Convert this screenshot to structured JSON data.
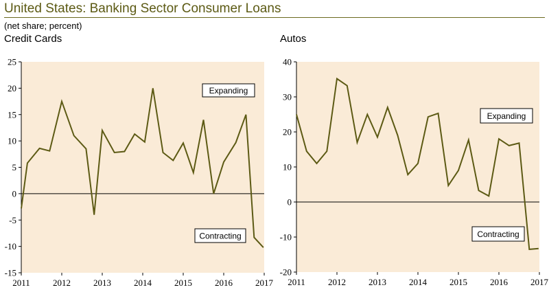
{
  "header": {
    "title": "United States: Banking Sector Consumer Loans",
    "subtitle": "(net share; percent)"
  },
  "colors": {
    "plot_bg": "#faebd7",
    "line": "#5c5a14",
    "axis": "#000000"
  },
  "chart_data": [
    {
      "type": "line",
      "title": "Credit Cards",
      "xlabel": "",
      "ylabel": "",
      "xlim": [
        2011,
        2017
      ],
      "ylim": [
        -15,
        25
      ],
      "yticks": [
        -15,
        -10,
        -5,
        0,
        5,
        10,
        15,
        20,
        25
      ],
      "ytick_labels": [
        "-15",
        "-10",
        "-5",
        "0",
        "5",
        "10",
        "15",
        "20",
        "25"
      ],
      "xticks": [
        2011,
        2012,
        2013,
        2014,
        2015,
        2016,
        2017
      ],
      "xtick_labels": [
        "2011",
        "2012",
        "2013",
        "2014",
        "2015",
        "2016",
        "2017"
      ],
      "series": [
        {
          "name": "Credit Cards",
          "x": [
            2011.0,
            2011.15,
            2011.45,
            2011.7,
            2012.0,
            2012.3,
            2012.6,
            2012.8,
            2013.0,
            2013.3,
            2013.55,
            2013.8,
            2014.05,
            2014.25,
            2014.5,
            2014.75,
            2015.0,
            2015.25,
            2015.5,
            2015.75,
            2016.0,
            2016.3,
            2016.55,
            2016.75,
            2016.98
          ],
          "values": [
            -2.8,
            5.8,
            8.6,
            8.1,
            17.5,
            11.0,
            8.5,
            -4.0,
            12.0,
            7.8,
            8.0,
            11.3,
            9.8,
            20.0,
            7.8,
            6.3,
            9.6,
            4.0,
            14.0,
            0.0,
            6.0,
            9.7,
            15.0,
            -8.3,
            -10.2
          ]
        }
      ],
      "annotations": [
        "Expanding",
        "Contracting"
      ]
    },
    {
      "type": "line",
      "title": "Autos",
      "xlabel": "",
      "ylabel": "",
      "xlim": [
        2011,
        2017
      ],
      "ylim": [
        -20,
        40
      ],
      "yticks": [
        -20,
        -10,
        0,
        10,
        20,
        30,
        40
      ],
      "ytick_labels": [
        "-20",
        "-10",
        "0",
        "10",
        "20",
        "30",
        "40"
      ],
      "xticks": [
        2011,
        2012,
        2013,
        2014,
        2015,
        2016,
        2017
      ],
      "xtick_labels": [
        "2011",
        "2012",
        "2013",
        "2014",
        "2015",
        "2016",
        "2017"
      ],
      "series": [
        {
          "name": "Autos",
          "x": [
            2011.0,
            2011.25,
            2011.5,
            2011.75,
            2012.0,
            2012.25,
            2012.5,
            2012.75,
            2013.0,
            2013.25,
            2013.5,
            2013.75,
            2014.0,
            2014.25,
            2014.5,
            2014.75,
            2015.0,
            2015.25,
            2015.5,
            2015.75,
            2016.0,
            2016.25,
            2016.5,
            2016.75,
            2016.98
          ],
          "values": [
            25.0,
            14.5,
            11.0,
            14.5,
            35.2,
            33.2,
            17.0,
            25.0,
            18.5,
            27.0,
            19.0,
            7.8,
            11.0,
            24.3,
            25.3,
            4.7,
            9.0,
            17.7,
            3.3,
            1.7,
            18.0,
            16.1,
            16.8,
            -13.5,
            -13.3
          ]
        }
      ],
      "annotations": [
        "Expanding",
        "Contracting"
      ]
    }
  ]
}
